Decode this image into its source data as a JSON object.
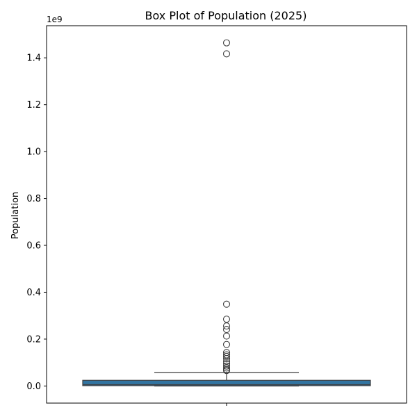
{
  "chart_data": {
    "type": "box",
    "title": "Box Plot of Population (2025)",
    "xlabel": "",
    "ylabel": "Population",
    "y_offset_label": "1e9",
    "ylim": [
      -0.073,
      1.537
    ],
    "yticks": [
      0.0,
      0.2,
      0.4,
      0.6,
      0.8,
      1.0,
      1.2,
      1.4
    ],
    "ytick_labels": [
      "0.0",
      "0.2",
      "0.4",
      "0.6",
      "0.8",
      "1.0",
      "1.2",
      "1.4"
    ],
    "grid": false,
    "box": {
      "whisker_low": 0.0,
      "q1": 0.0015,
      "median": 0.0058,
      "q3": 0.0242,
      "whisker_high": 0.0578,
      "fill_color": "#3274a1",
      "edge_color": "#3f3f3f"
    },
    "outliers": [
      1.464,
      1.417,
      0.349,
      0.285,
      0.256,
      0.241,
      0.213,
      0.177,
      0.143,
      0.133,
      0.126,
      0.117,
      0.105,
      0.095,
      0.085,
      0.077,
      0.07,
      0.066
    ]
  }
}
